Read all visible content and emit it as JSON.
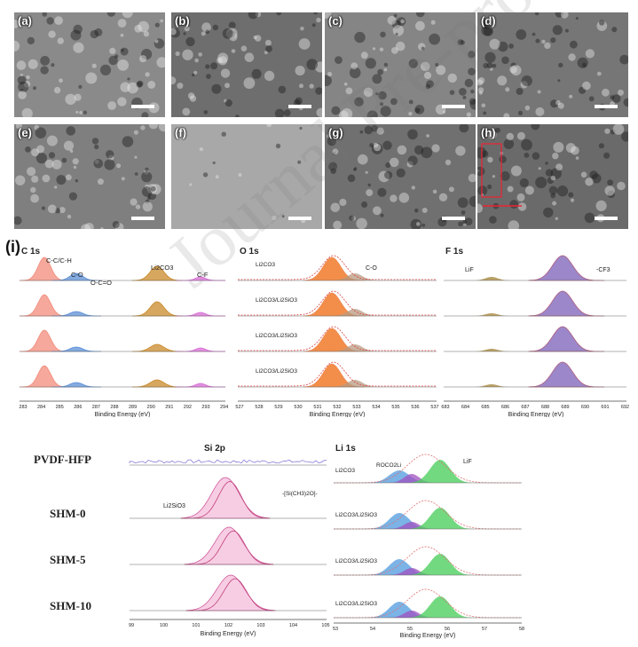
{
  "sem_panels": [
    {
      "label": "(a)",
      "tone": "#8a8a8a"
    },
    {
      "label": "(b)",
      "tone": "#6e6e6e"
    },
    {
      "label": "(c)",
      "tone": "#858585"
    },
    {
      "label": "(d)",
      "tone": "#767676"
    },
    {
      "label": "(e)",
      "tone": "#7f7f7f"
    },
    {
      "label": "(f)",
      "tone": "#a8a8a8"
    },
    {
      "label": "(g)",
      "tone": "#707070"
    },
    {
      "label": "(h)",
      "tone": "#6a6a6a"
    }
  ],
  "panel_i_label": "(i)",
  "watermark": "Journal Pre-proof",
  "xps": {
    "c1s": {
      "title": "C 1s",
      "xlabel": "Binding Energy (eV)",
      "ticks": [
        "283",
        "284",
        "285",
        "286",
        "287",
        "288",
        "289",
        "290",
        "291",
        "292",
        "293",
        "294"
      ],
      "peaks": [
        "C-C/C-H",
        "C-O",
        "O-C=O",
        "Li2CO3",
        "C-F"
      ]
    },
    "o1s": {
      "title": "O 1s",
      "xlabel": "Binding Energy (eV)",
      "ticks": [
        "527",
        "528",
        "529",
        "530",
        "531",
        "532",
        "533",
        "534",
        "535",
        "536",
        "537"
      ],
      "row_labels": [
        "Li2CO3",
        "Li2CO3/Li2SiO3",
        "Li2CO3/Li2SiO3",
        "Li2CO3/Li2SiO3"
      ],
      "peak_co": "C-O"
    },
    "f1s": {
      "title": "F 1s",
      "xlabel": "Binding Energy (eV)",
      "ticks": [
        "683",
        "684",
        "685",
        "686",
        "687",
        "688",
        "689",
        "690",
        "691",
        "692"
      ],
      "peaks": [
        "LiF",
        "-CF3"
      ]
    },
    "si2p": {
      "title": "Si 2p",
      "xlabel": "Binding Energy (eV)",
      "ticks": [
        "99",
        "100",
        "101",
        "102",
        "103",
        "104",
        "105"
      ],
      "peaks": [
        "Li2SiO3",
        "-[Si(CH3)2O]-"
      ]
    },
    "li1s": {
      "title": "Li 1s",
      "xlabel": "Binding Energy (eV)",
      "ticks": [
        "53",
        "54",
        "55",
        "56",
        "57",
        "58"
      ],
      "row_labels": [
        "Li2CO3",
        "Li2CO3/Li2SiO3",
        "Li2CO3/Li2SiO3",
        "Li2CO3/Li2SiO3"
      ],
      "peaks": [
        "ROCO2Li",
        "LiF"
      ]
    },
    "sample_labels": [
      "PVDF-HFP",
      "SHM-0",
      "SHM-5",
      "SHM-10"
    ]
  }
}
